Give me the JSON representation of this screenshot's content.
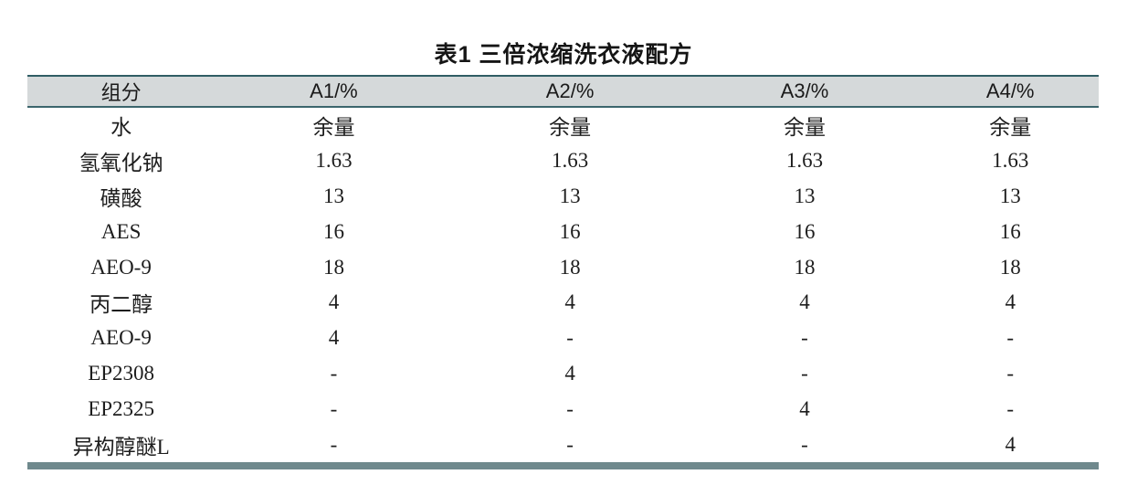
{
  "title": "表1 三倍浓缩洗衣液配方",
  "table": {
    "columns": [
      "组分",
      "A1/%",
      "A2/%",
      "A3/%",
      "A4/%"
    ],
    "rows": [
      [
        "水",
        "余量",
        "余量",
        "余量",
        "余量"
      ],
      [
        "氢氧化钠",
        "1.63",
        "1.63",
        "1.63",
        "1.63"
      ],
      [
        "磺酸",
        "13",
        "13",
        "13",
        "13"
      ],
      [
        "AES",
        "16",
        "16",
        "16",
        "16"
      ],
      [
        "AEO-9",
        "18",
        "18",
        "18",
        "18"
      ],
      [
        "丙二醇",
        "4",
        "4",
        "4",
        "4"
      ],
      [
        "AEO-9",
        "4",
        "-",
        "-",
        "-"
      ],
      [
        "EP2308",
        "-",
        "4",
        "-",
        "-"
      ],
      [
        "EP2325",
        "-",
        "-",
        "4",
        "-"
      ],
      [
        "异构醇醚L",
        "-",
        "-",
        "-",
        "4"
      ]
    ]
  },
  "colors": {
    "header_bg": "#d5d9da",
    "top_rule": "#2f5d64",
    "header_rule": "#3b656c",
    "bottom_bar": "#6f898d",
    "text": "#1d1d1d"
  }
}
